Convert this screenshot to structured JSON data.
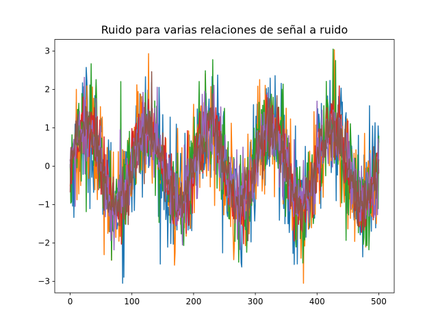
{
  "chart_data": {
    "type": "line",
    "title": "Ruido para varias relaciones de señal a ruido",
    "xlabel": "",
    "ylabel": "",
    "xlim": [
      -25,
      525
    ],
    "ylim": [
      -3.3,
      3.3
    ],
    "x_ticks": [
      0,
      100,
      200,
      300,
      400,
      500
    ],
    "x_tick_labels": [
      "0",
      "100",
      "200",
      "300",
      "400",
      "500"
    ],
    "y_ticks": [
      -3,
      -2,
      -1,
      0,
      1,
      2,
      3
    ],
    "y_tick_labels": [
      "−3",
      "−2",
      "−1",
      "0",
      "1",
      "2",
      "3"
    ],
    "grid": false,
    "legend": "none",
    "n_points": 501,
    "signal": {
      "form": "sine",
      "amplitude": 1,
      "period": 100,
      "phase_deg": 0
    },
    "series": [
      {
        "color": "#1f77b4",
        "noise_std": 0.8
      },
      {
        "color": "#ff7f0e",
        "noise_std": 0.75
      },
      {
        "color": "#2ca02c",
        "noise_std": 0.7
      },
      {
        "color": "#d62728",
        "noise_std": 0.45
      },
      {
        "color": "#9467bd",
        "noise_std": 0.55
      },
      {
        "color": "#8c564b",
        "noise_std": 0.4
      }
    ]
  }
}
